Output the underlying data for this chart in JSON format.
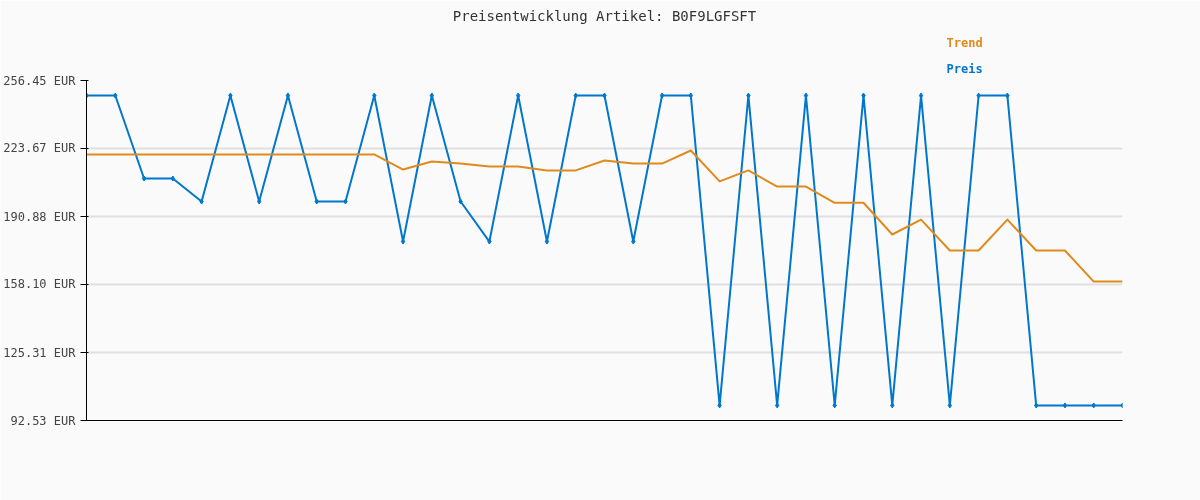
{
  "chart_data": {
    "type": "line",
    "title": "Preisentwicklung Artikel: B0F9LGFSFT",
    "categories": [
      null,
      null,
      null,
      null,
      null,
      null,
      null,
      null,
      null,
      null,
      null,
      null,
      null,
      null,
      null,
      null,
      null,
      null,
      null,
      null,
      null,
      null,
      null,
      null,
      null,
      null,
      null,
      null,
      null,
      null,
      null,
      null,
      null,
      null,
      null,
      null,
      null
    ],
    "series": [
      {
        "name": "Preis",
        "color": "#0077cc",
        "marker": "diamond",
        "values": [
          249.2,
          249.2,
          209.2,
          209.2,
          198.1,
          249.2,
          198.1,
          249.2,
          198.1,
          198.1,
          249.2,
          178.8,
          249.2,
          198.1,
          178.8,
          249.2,
          178.8,
          249.2,
          249.2,
          178.8,
          249.2,
          249.2,
          99.8,
          249.2,
          99.8,
          249.2,
          99.8,
          249.2,
          99.8,
          249.2,
          99.8,
          249.2,
          249.2,
          99.8,
          99.8,
          99.8,
          99.8
        ]
      },
      {
        "name": "Trend",
        "color": "#e08a1e",
        "marker": "none",
        "values": [
          220.8,
          220.8,
          220.8,
          220.8,
          220.8,
          220.8,
          220.8,
          220.8,
          220.8,
          220.8,
          220.8,
          213.5,
          217.4,
          216.4,
          215.0,
          215.0,
          213.1,
          213.1,
          217.9,
          216.4,
          216.4,
          222.7,
          207.8,
          213.1,
          205.3,
          205.3,
          197.5,
          197.5,
          182.2,
          189.4,
          174.5,
          174.5,
          189.4,
          174.5,
          174.5,
          159.5,
          159.5
        ]
      }
    ],
    "ylim": [
      92.53,
      256.45
    ],
    "yticks": [
      {
        "value": 92.53,
        "label": "92.53 EUR"
      },
      {
        "value": 125.31,
        "label": "125.31 EUR"
      },
      {
        "value": 158.1,
        "label": "158.10 EUR"
      },
      {
        "value": 190.88,
        "label": "190.88 EUR"
      },
      {
        "value": 223.67,
        "label": "223.67 EUR"
      },
      {
        "value": 256.45,
        "label": "256.45 EUR"
      }
    ],
    "grid": "y",
    "tick_labels": "y"
  }
}
